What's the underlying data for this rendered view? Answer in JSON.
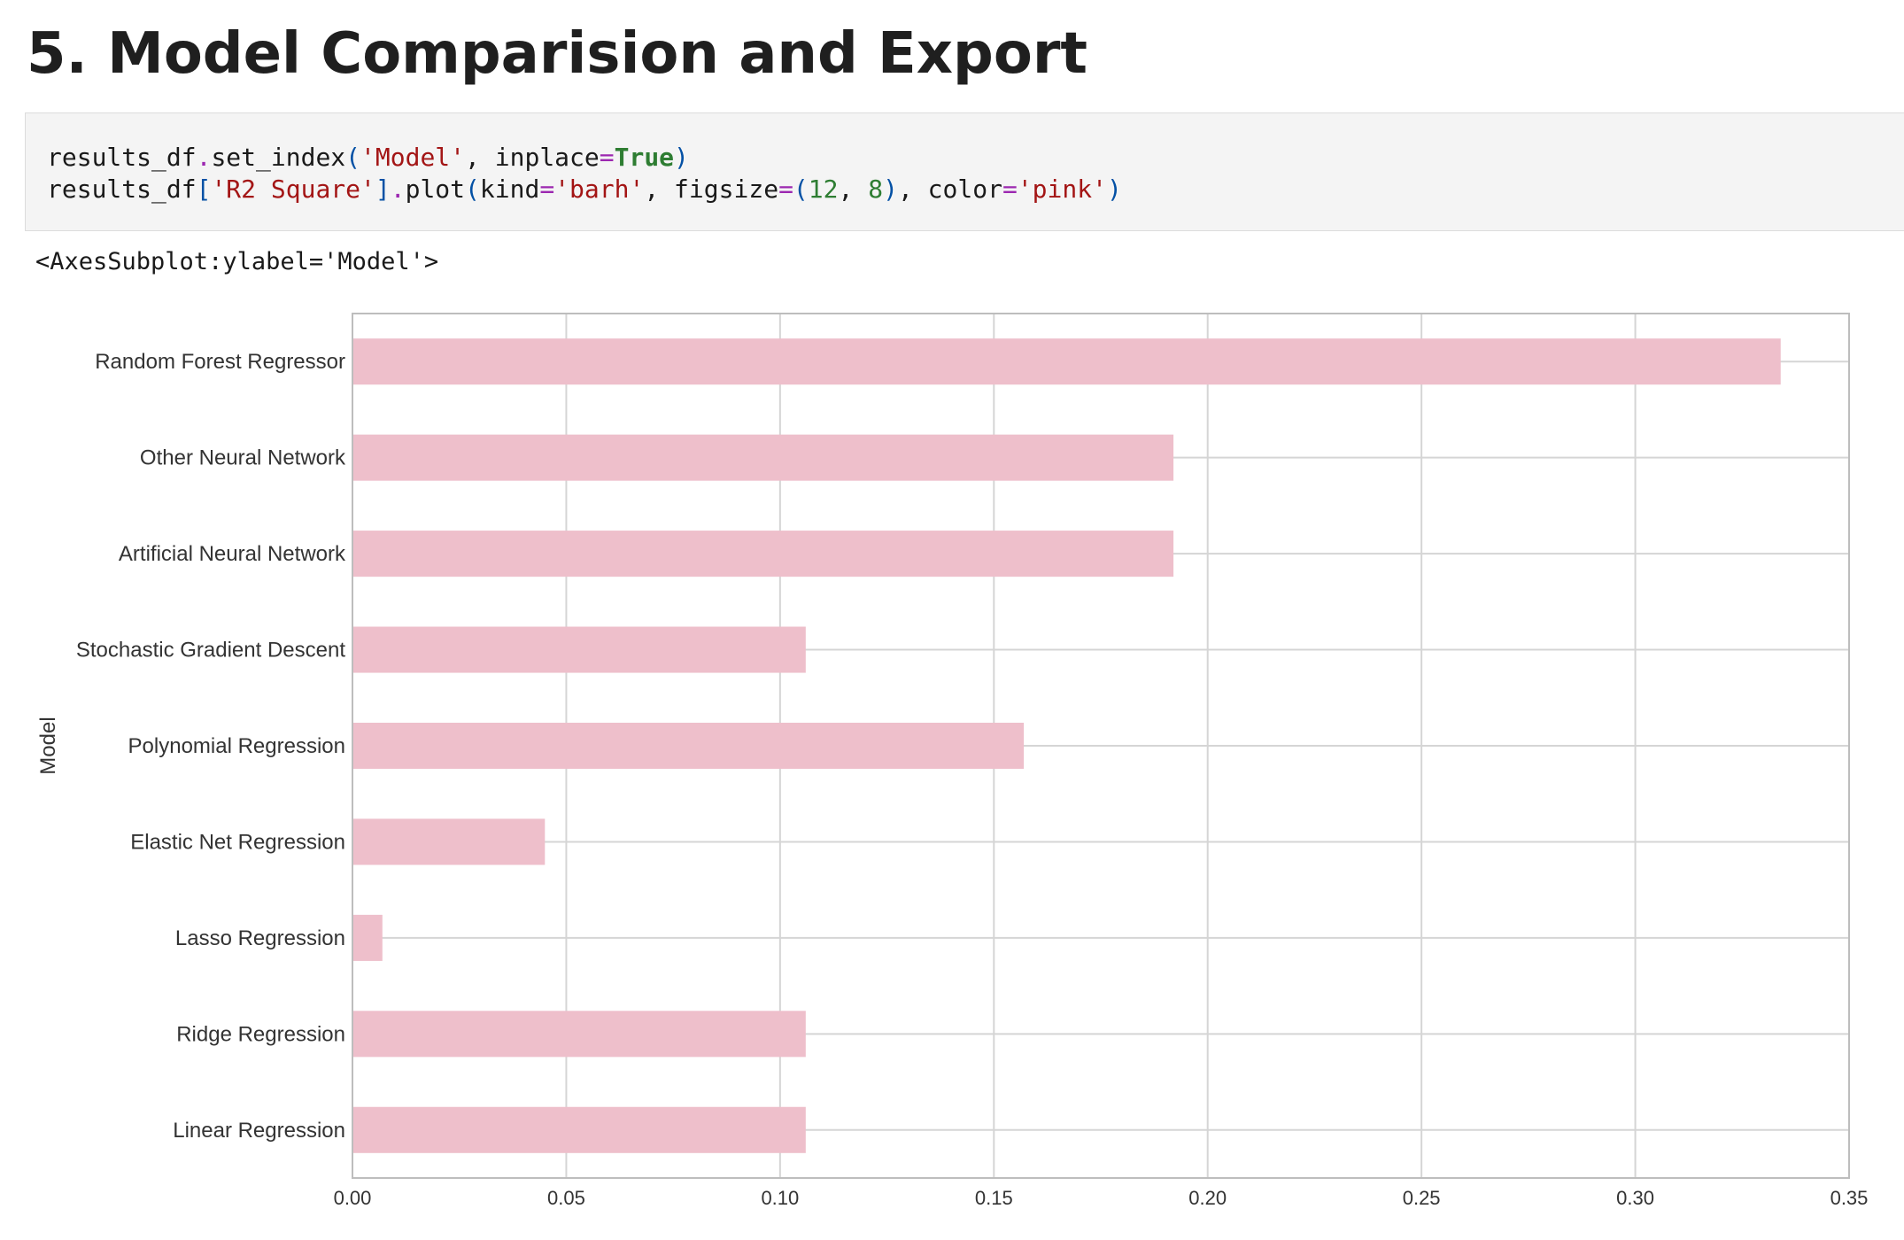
{
  "heading": "5. Model Comparision and Export",
  "code": {
    "line1": [
      {
        "t": "results_df",
        "c": ""
      },
      {
        "t": ".",
        "c": "o"
      },
      {
        "t": "set_index",
        "c": ""
      },
      {
        "t": "(",
        "c": "p"
      },
      {
        "t": "'Model'",
        "c": "s"
      },
      {
        "t": ", inplace",
        "c": ""
      },
      {
        "t": "=",
        "c": "o"
      },
      {
        "t": "True",
        "c": "k"
      },
      {
        "t": ")",
        "c": "p"
      }
    ],
    "line2": [
      {
        "t": "results_df",
        "c": ""
      },
      {
        "t": "[",
        "c": "p"
      },
      {
        "t": "'R2 Square'",
        "c": "s"
      },
      {
        "t": "]",
        "c": "p"
      },
      {
        "t": ".",
        "c": "o"
      },
      {
        "t": "plot",
        "c": ""
      },
      {
        "t": "(",
        "c": "p"
      },
      {
        "t": "kind",
        "c": ""
      },
      {
        "t": "=",
        "c": "o"
      },
      {
        "t": "'barh'",
        "c": "s"
      },
      {
        "t": ", figsize",
        "c": ""
      },
      {
        "t": "=",
        "c": "o"
      },
      {
        "t": "(",
        "c": "p"
      },
      {
        "t": "12",
        "c": "n"
      },
      {
        "t": ", ",
        "c": ""
      },
      {
        "t": "8",
        "c": "n"
      },
      {
        "t": ")",
        "c": "p"
      },
      {
        "t": ", color",
        "c": ""
      },
      {
        "t": "=",
        "c": "o"
      },
      {
        "t": "'pink'",
        "c": "s"
      },
      {
        "t": ")",
        "c": "p"
      }
    ]
  },
  "output_text": "<AxesSubplot:ylabel='Model'>",
  "colors": {
    "bar": "#eebfcb",
    "grid": "#d5d5d5",
    "axis": "#bdbdbd"
  },
  "chart_data": {
    "type": "bar",
    "orientation": "horizontal",
    "categories": [
      "Random Forest Regressor",
      "Other Neural Network",
      "Artificial Neural Network",
      "Stochastic Gradient Descent",
      "Polynomial Regression",
      "Elastic Net Regression",
      "Lasso Regression",
      "Ridge Regression",
      "Linear Regression"
    ],
    "values": [
      0.334,
      0.192,
      0.192,
      0.106,
      0.157,
      0.045,
      0.007,
      0.106,
      0.106
    ],
    "xlabel": "",
    "ylabel": "Model",
    "xlim": [
      0,
      0.35
    ],
    "xticks": [
      "0.00",
      "0.05",
      "0.10",
      "0.15",
      "0.20",
      "0.25",
      "0.30",
      "0.35"
    ],
    "grid": true,
    "legend": "none"
  }
}
